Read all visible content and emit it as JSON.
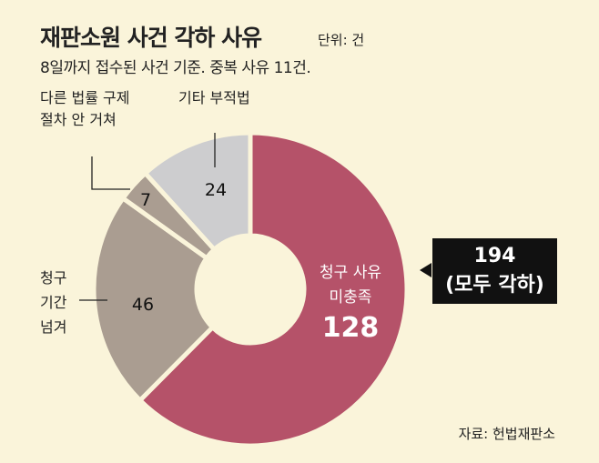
{
  "title": "재판소원 사건 각하 사유",
  "unit": "단위: 건",
  "subtitle": "8일까지 접수된 사건 기준. 중복 사유 11건.",
  "callout": {
    "line1": "194",
    "line2": "(모두 각하)"
  },
  "source": "자료: 헌법재판소",
  "chart_data": {
    "type": "pie",
    "donut": true,
    "title": "재판소원 사건 각하 사유",
    "slices": [
      {
        "label_lines": [
          "청구 사유",
          "미충족"
        ],
        "value": 128,
        "color": "#b55269"
      },
      {
        "label_lines": [
          "청구",
          "기간",
          "넘겨"
        ],
        "value": 46,
        "color": "#aa9d91"
      },
      {
        "label_lines": [
          "다른 법률 구제",
          "절차 안 거쳐"
        ],
        "value": 7,
        "color": "#aa9d91"
      },
      {
        "label_lines": [
          "기타 부적법"
        ],
        "value": 24,
        "color": "#cdcdcf"
      }
    ]
  }
}
